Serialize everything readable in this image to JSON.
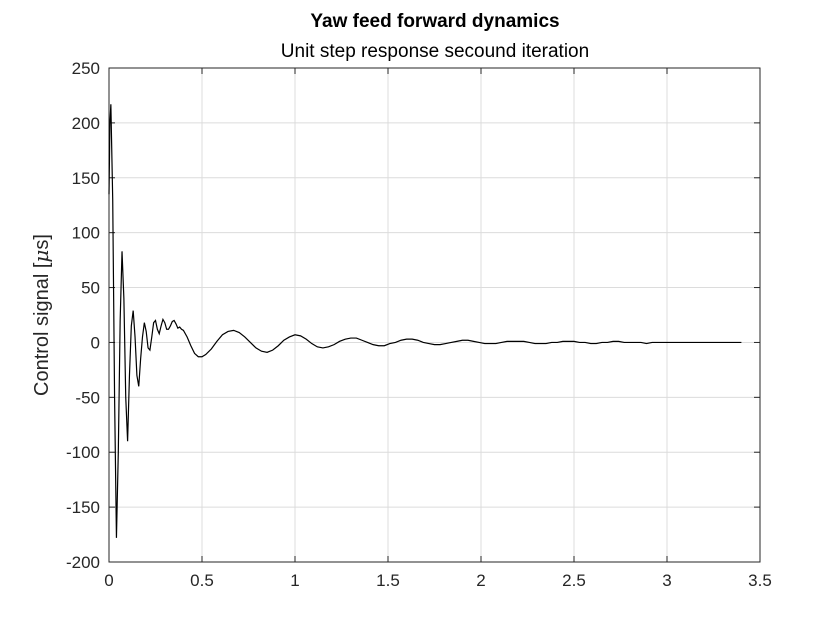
{
  "chart_data": {
    "type": "line",
    "title": "Yaw feed forward dynamics",
    "subtitle": "Unit step response secound iteration",
    "xlabel": "",
    "ylabel_text": "Control signal [",
    "ylabel_unit_mu": "μ",
    "ylabel_unit_rest": "s]",
    "xlim": [
      0,
      3.5
    ],
    "ylim": [
      -200,
      250
    ],
    "x_ticks": [
      0,
      0.5,
      1,
      1.5,
      2,
      2.5,
      3,
      3.5
    ],
    "x_tick_labels": [
      "0",
      "0.5",
      "1",
      "1.5",
      "2",
      "2.5",
      "3",
      "3.5"
    ],
    "y_ticks": [
      -200,
      -150,
      -100,
      -50,
      0,
      50,
      100,
      150,
      200,
      250
    ],
    "y_tick_labels": [
      "-200",
      "-150",
      "-100",
      "-50",
      "0",
      "50",
      "100",
      "150",
      "200",
      "250"
    ],
    "grid": true,
    "series": [
      {
        "color": "#000000",
        "x": [
          0,
          0.005,
          0.01,
          0.02,
          0.03,
          0.04,
          0.05,
          0.06,
          0.07,
          0.08,
          0.09,
          0.1,
          0.11,
          0.12,
          0.13,
          0.14,
          0.15,
          0.16,
          0.17,
          0.18,
          0.19,
          0.2,
          0.21,
          0.22,
          0.23,
          0.24,
          0.25,
          0.26,
          0.27,
          0.28,
          0.29,
          0.3,
          0.31,
          0.32,
          0.33,
          0.34,
          0.35,
          0.36,
          0.37,
          0.38,
          0.39,
          0.4,
          0.42,
          0.44,
          0.46,
          0.48,
          0.5,
          0.52,
          0.55,
          0.58,
          0.61,
          0.64,
          0.67,
          0.7,
          0.73,
          0.76,
          0.79,
          0.82,
          0.85,
          0.88,
          0.91,
          0.94,
          0.97,
          1.0,
          1.03,
          1.06,
          1.09,
          1.12,
          1.15,
          1.18,
          1.21,
          1.24,
          1.27,
          1.3,
          1.33,
          1.36,
          1.39,
          1.42,
          1.45,
          1.48,
          1.51,
          1.54,
          1.57,
          1.6,
          1.63,
          1.66,
          1.69,
          1.72,
          1.75,
          1.78,
          1.81,
          1.84,
          1.87,
          1.9,
          1.93,
          1.96,
          1.99,
          2.02,
          2.05,
          2.08,
          2.11,
          2.14,
          2.17,
          2.2,
          2.23,
          2.26,
          2.29,
          2.32,
          2.35,
          2.38,
          2.41,
          2.44,
          2.47,
          2.5,
          2.53,
          2.56,
          2.59,
          2.62,
          2.65,
          2.68,
          2.71,
          2.74,
          2.77,
          2.8,
          2.83,
          2.86,
          2.89,
          2.92,
          2.95,
          2.98,
          3.01,
          3.04,
          3.07,
          3.1,
          3.13,
          3.16,
          3.19,
          3.22,
          3.25,
          3.28,
          3.31,
          3.34,
          3.37,
          3.4
        ],
        "y": [
          135,
          200,
          217,
          130,
          -50,
          -178,
          -100,
          20,
          83,
          40,
          -50,
          -90,
          -30,
          15,
          29,
          5,
          -30,
          -40,
          -15,
          5,
          18,
          10,
          -5,
          -7,
          5,
          18,
          20,
          12,
          8,
          15,
          21,
          18,
          12,
          12,
          15,
          19,
          20,
          17,
          13,
          14,
          12,
          11,
          5,
          -3,
          -10,
          -13,
          -13,
          -11,
          -6,
          1,
          7,
          10,
          11,
          9,
          5,
          0,
          -5,
          -8,
          -9,
          -7,
          -3,
          2,
          5,
          7,
          6,
          3,
          -1,
          -4,
          -5,
          -4,
          -2,
          1,
          3,
          4,
          4,
          2,
          0,
          -2,
          -3,
          -3,
          -1,
          0,
          2,
          3,
          3,
          2,
          0,
          -1,
          -2,
          -2,
          -1,
          0,
          1,
          2,
          2,
          1,
          0,
          -1,
          -1,
          -1,
          0,
          1,
          1,
          1,
          1,
          0,
          -1,
          -1,
          -1,
          0,
          0,
          1,
          1,
          1,
          0,
          0,
          -1,
          -1,
          0,
          0,
          1,
          1,
          0,
          0,
          0,
          0,
          -1,
          0,
          0,
          0,
          0,
          0,
          0,
          0,
          0,
          0,
          0,
          0,
          0,
          0,
          0,
          0,
          0,
          0
        ]
      }
    ]
  }
}
